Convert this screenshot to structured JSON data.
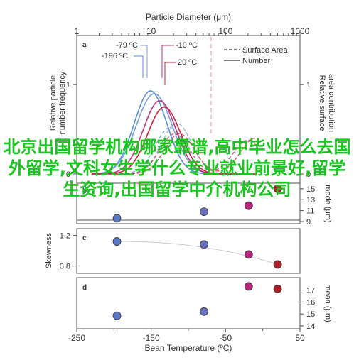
{
  "watermark": "北京出国留学机构哪家靠谱,高中毕业怎么去国外留学,文科女生学什么专业就业前景好,留学生资询,出国留学中介机构公司",
  "colors": {
    "c_neg196": "#5b8fd8",
    "c_neg79": "#7f9fd6",
    "c_neg19": "#c4357f",
    "c_20": "#c8243a",
    "text": "#333333",
    "axis": "#555555",
    "dashed_marker": "#f0a0c0",
    "point_neg196": "#5b78c8",
    "point_neg79": "#6a6fbf",
    "point_neg19": "#b8257f",
    "point_20": "#b01e28",
    "watermark": "#18c41d"
  },
  "chart_data": [
    {
      "panel": "a",
      "type": "line",
      "xlabel": "Particle Diameter (μm)",
      "xscale": "log",
      "xlim": [
        1,
        1000
      ],
      "xticks": [
        "1",
        "10",
        "100",
        "1000"
      ],
      "ylabel_left": "Relative particle number frequency",
      "ylabel_right": "Relative surface area contribution",
      "ylim": [
        0,
        1.55
      ],
      "yticks": [
        "0",
        "1"
      ],
      "legend": [
        "Surface Area",
        "Number"
      ],
      "series_labels": [
        "-79 ºC",
        "-196 ºC",
        "-19 ºC",
        "20 ºC"
      ],
      "series": [
        {
          "name": "-196 ºC",
          "color_key": "c_neg196",
          "number_peak_x": 9.8,
          "number_peak_y": 0.93,
          "spread": 0.22,
          "surface_peak_x": 18,
          "surface_peak_y": 0.52
        },
        {
          "name": "-79 ºC",
          "color_key": "c_neg79",
          "number_peak_x": 11,
          "number_peak_y": 0.9,
          "spread": 0.24,
          "surface_peak_x": 22,
          "surface_peak_y": 0.57
        },
        {
          "name": "-19 ºC",
          "color_key": "c_neg19",
          "number_peak_x": 13,
          "number_peak_y": 0.82,
          "spread": 0.22,
          "surface_peak_x": 200,
          "surface_peak_y": 0.38
        },
        {
          "name": "20 ºC",
          "color_key": "c_20",
          "number_peak_x": 15,
          "number_peak_y": 0.75,
          "spread": 0.22,
          "surface_peak_x": 250,
          "surface_peak_y": 0.4
        }
      ]
    },
    {
      "panel": "b",
      "type": "scatter",
      "ylabel": "mode (μm)",
      "yticks": [
        "9",
        "11",
        "13",
        "15"
      ],
      "ylim": [
        9,
        15.5
      ],
      "x": [
        -196,
        -79,
        -19,
        20
      ],
      "values": [
        9.6,
        10.8,
        11.9,
        15.0
      ]
    },
    {
      "panel": "c",
      "type": "scatter",
      "ylabel": "Skewness",
      "yticks": [
        "0.8",
        "1.2"
      ],
      "ylim": [
        0.75,
        1.25
      ],
      "x": [
        -196,
        -79,
        -19,
        20
      ],
      "values": [
        1.12,
        1.08,
        0.95,
        0.82
      ]
    },
    {
      "panel": "d",
      "type": "scatter",
      "ylabel": "mean (μm)",
      "yticks": [
        "14",
        "15",
        "16",
        "17"
      ],
      "ylim": [
        14,
        17.8
      ],
      "x": [
        -196,
        -79,
        -19,
        20
      ],
      "values": [
        14.85,
        15.2,
        17.3,
        17.1
      ],
      "xlabel": "Bean Temperature (ºC)",
      "xlim": [
        -250,
        50
      ],
      "xticks": [
        "-250",
        "-150",
        "-50",
        "50"
      ]
    }
  ]
}
